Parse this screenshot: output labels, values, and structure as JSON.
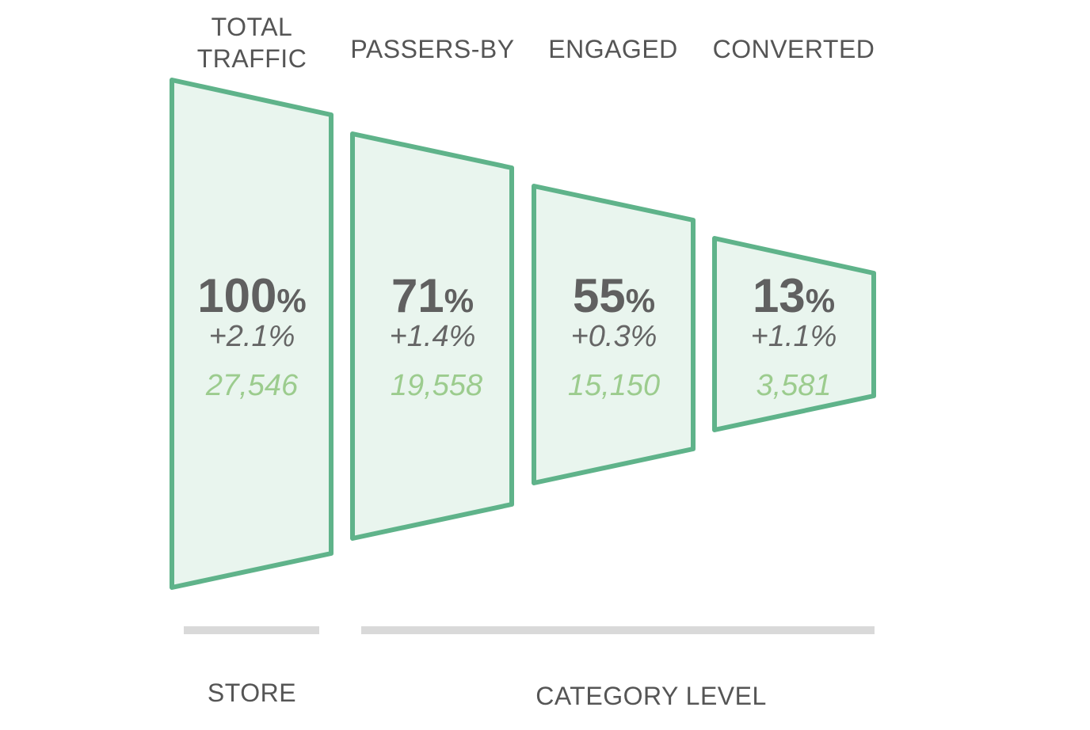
{
  "colors": {
    "stroke": "#5fb38a",
    "fill": "#e9f5ee",
    "percent": "#606060",
    "delta": "#666666",
    "count": "#9ccc8e",
    "bar": "#d9d9d9"
  },
  "stages": [
    {
      "title_lines": [
        "TOTAL",
        "TRAFFIC"
      ],
      "percent": "100",
      "percent_sign": "%",
      "delta": "+2.1%",
      "count": "27,546"
    },
    {
      "title_lines": [
        "PASSERS-BY"
      ],
      "percent": "71",
      "percent_sign": "%",
      "delta": "+1.4%",
      "count": "19,558"
    },
    {
      "title_lines": [
        "ENGAGED"
      ],
      "percent": "55",
      "percent_sign": "%",
      "delta": "+0.3%",
      "count": "15,150"
    },
    {
      "title_lines": [
        "CONVERTED"
      ],
      "percent": "13",
      "percent_sign": "%",
      "delta": "+1.1%",
      "count": "3,581"
    }
  ],
  "groups": [
    {
      "label": "STORE"
    },
    {
      "label": "CATEGORY LEVEL"
    }
  ]
}
